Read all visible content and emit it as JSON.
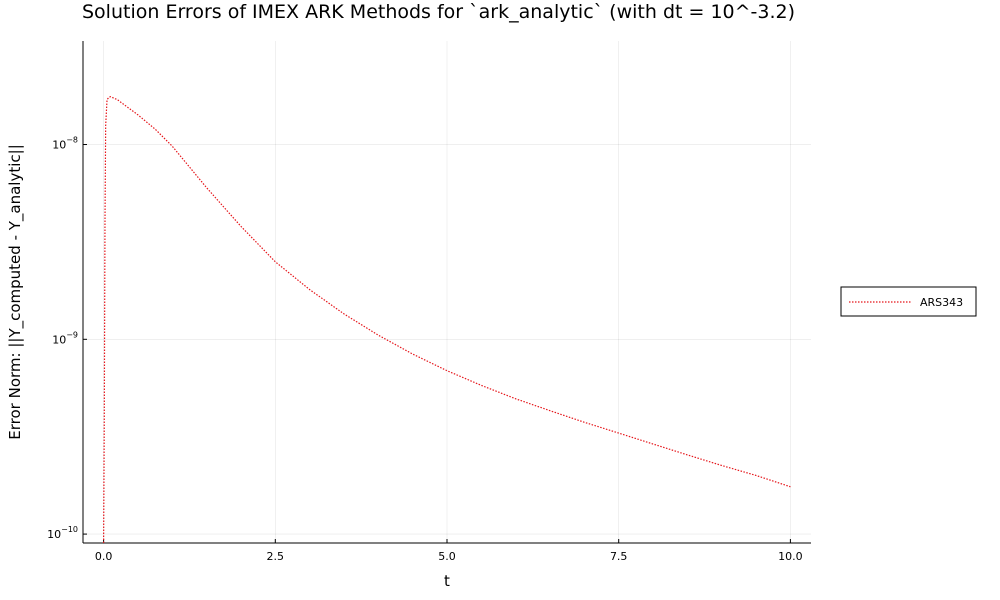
{
  "chart_data": {
    "type": "line",
    "title": "Solution Errors of IMEX ARK Methods for `ark_analytic` (with dt = 10^-3.2)",
    "xlabel": "t",
    "ylabel": "Error Norm: ||Y_computed - Y_analytic||",
    "xlim": [
      -0.3,
      10.3
    ],
    "ylim": [
      9e-11,
      3.4e-08
    ],
    "yscale": "log",
    "grid": true,
    "legend_position": "outside-right",
    "x_ticks": [
      {
        "value": 0,
        "label": "0.0"
      },
      {
        "value": 2.5,
        "label": "2.5"
      },
      {
        "value": 5,
        "label": "5.0"
      },
      {
        "value": 7.5,
        "label": "7.5"
      },
      {
        "value": 10,
        "label": "10.0"
      }
    ],
    "y_ticks": [
      {
        "value": 1e-10,
        "base": "10",
        "exp": "−10"
      },
      {
        "value": 1e-09,
        "base": "10",
        "exp": "−9"
      },
      {
        "value": 1e-08,
        "base": "10",
        "exp": "−8"
      }
    ],
    "series": [
      {
        "name": "ARS343",
        "color": "#e5161b",
        "style": "dotted",
        "x": [
          0.0,
          0.01,
          0.02,
          0.03,
          0.05,
          0.08,
          0.1,
          0.2,
          0.3,
          0.5,
          0.75,
          1.0,
          1.5,
          2.0,
          2.5,
          3.0,
          3.5,
          4.0,
          4.5,
          5.0,
          5.5,
          6.0,
          6.5,
          7.0,
          7.5,
          8.0,
          8.5,
          9.0,
          9.5,
          10.0
        ],
        "y": [
          9e-11,
          4e-10,
          4e-09,
          1.25e-08,
          1.7e-08,
          1.75e-08,
          1.76e-08,
          1.7e-08,
          1.6e-08,
          1.42e-08,
          1.2e-08,
          9.8e-09,
          6e-09,
          3.8e-09,
          2.5e-09,
          1.8e-09,
          1.35e-09,
          1.05e-09,
          8.4e-10,
          6.9e-10,
          5.8e-10,
          4.95e-10,
          4.3e-10,
          3.75e-10,
          3.3e-10,
          2.9e-10,
          2.55e-10,
          2.25e-10,
          2e-10,
          1.75e-10
        ]
      }
    ]
  }
}
